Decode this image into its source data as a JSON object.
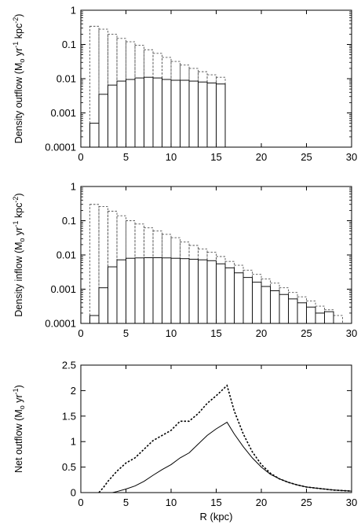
{
  "chart_data": [
    {
      "type": "bar",
      "yscale": "log",
      "ylim": [
        0.0001,
        1
      ],
      "xlim": [
        0,
        30
      ],
      "xticks": [
        0,
        5,
        10,
        15,
        20,
        25,
        30
      ],
      "yticks": [
        {
          "value": 0.0001,
          "label": "0.0001"
        },
        {
          "value": 0.001,
          "label": "0.001"
        },
        {
          "value": 0.01,
          "label": "0.01"
        },
        {
          "value": 0.1,
          "label": "0.1"
        },
        {
          "value": 1,
          "label": "1"
        }
      ],
      "ylabel": {
        "base": "Density outflow (M",
        "sub": "o",
        "mid1": " yr",
        "sup1": "-1",
        "mid2": " kpc",
        "sup2": "-2",
        "end": ")"
      },
      "xlabel": "",
      "bin_edges": [
        1,
        2,
        3,
        4,
        5,
        6,
        7,
        8,
        9,
        10,
        11,
        12,
        13,
        14,
        15,
        16
      ],
      "series": [
        {
          "style": "dashed",
          "values": [
            0.34,
            0.28,
            0.2,
            0.15,
            0.12,
            0.095,
            0.07,
            0.055,
            0.042,
            0.032,
            0.025,
            0.02,
            0.016,
            0.013,
            0.011
          ]
        },
        {
          "style": "solid",
          "values": [
            0.0005,
            0.0035,
            0.0065,
            0.0085,
            0.0095,
            0.0105,
            0.011,
            0.0105,
            0.0095,
            0.009,
            0.009,
            0.0085,
            0.008,
            0.0075,
            0.007
          ]
        }
      ]
    },
    {
      "type": "bar",
      "yscale": "log",
      "ylim": [
        0.0001,
        1
      ],
      "xlim": [
        0,
        30
      ],
      "xticks": [
        0,
        5,
        10,
        15,
        20,
        25,
        30
      ],
      "yticks": [
        {
          "value": 0.0001,
          "label": "0.0001"
        },
        {
          "value": 0.001,
          "label": "0.001"
        },
        {
          "value": 0.01,
          "label": "0.01"
        },
        {
          "value": 0.1,
          "label": "0.1"
        },
        {
          "value": 1,
          "label": "1"
        }
      ],
      "ylabel": {
        "base": "Density inflow (M",
        "sub": "o",
        "mid1": " yr",
        "sup1": "-1",
        "mid2": " kpc",
        "sup2": "-2",
        "end": ")"
      },
      "xlabel": "",
      "bin_edges": [
        1,
        2,
        3,
        4,
        5,
        6,
        7,
        8,
        9,
        10,
        11,
        12,
        13,
        14,
        15,
        16,
        17,
        18,
        19,
        20,
        21,
        22,
        23,
        24,
        25,
        26,
        27,
        28,
        29
      ],
      "series": [
        {
          "style": "dashed",
          "values": [
            0.3,
            0.26,
            0.19,
            0.14,
            0.1,
            0.08,
            0.062,
            0.05,
            0.04,
            0.032,
            0.024,
            0.019,
            0.015,
            0.012,
            0.009,
            0.0065,
            0.005,
            0.0036,
            0.0027,
            0.002,
            0.0015,
            0.0011,
            0.0008,
            0.0006,
            0.00045,
            0.00032,
            0.00025,
            0.00017
          ]
        },
        {
          "style": "solid",
          "values": [
            0.00017,
            0.0011,
            0.0045,
            0.0072,
            0.008,
            0.0082,
            0.0083,
            0.0083,
            0.0082,
            0.008,
            0.0078,
            0.0075,
            0.0072,
            0.0068,
            0.0055,
            0.0042,
            0.003,
            0.0022,
            0.0016,
            0.0012,
            0.0009,
            0.0007,
            0.00052,
            0.0004,
            0.0003,
            0.0002,
            0.00022,
            0.0001
          ]
        }
      ]
    },
    {
      "type": "line",
      "ylim": [
        0,
        2.5
      ],
      "xlim": [
        0,
        30
      ],
      "xticks": [
        0,
        5,
        10,
        15,
        20,
        25,
        30
      ],
      "yticks": [
        {
          "value": 0,
          "label": "0"
        },
        {
          "value": 0.5,
          "label": "0.5"
        },
        {
          "value": 1,
          "label": "1"
        },
        {
          "value": 1.5,
          "label": "1.5"
        },
        {
          "value": 2,
          "label": "2"
        },
        {
          "value": 2.5,
          "label": "2.5"
        }
      ],
      "ylabel": {
        "base": "Net outflow (M",
        "sub": "o",
        "mid1": " yr",
        "sup1": "-1",
        "end": ")"
      },
      "xlabel": "R (kpc)",
      "series": [
        {
          "style": "dashed",
          "x": [
            2,
            2.5,
            3,
            4,
            5,
            6,
            7,
            8,
            9,
            10,
            11,
            12,
            13,
            14,
            15,
            16.2,
            17,
            18,
            19,
            20,
            21,
            22,
            23,
            24,
            25,
            26,
            27,
            28,
            29,
            30
          ],
          "y": [
            0,
            0.1,
            0.22,
            0.42,
            0.58,
            0.68,
            0.85,
            1.02,
            1.12,
            1.22,
            1.4,
            1.4,
            1.55,
            1.75,
            1.9,
            2.1,
            1.6,
            1.15,
            0.8,
            0.55,
            0.38,
            0.27,
            0.2,
            0.15,
            0.11,
            0.09,
            0.07,
            0.05,
            0.04,
            0.03
          ]
        },
        {
          "style": "solid",
          "x": [
            3.5,
            4,
            5,
            6,
            7,
            8,
            9,
            10,
            11,
            12,
            13,
            14,
            15,
            16.2,
            17,
            18,
            19,
            20,
            21,
            22,
            23,
            24,
            25,
            26,
            27,
            28,
            29,
            30
          ],
          "y": [
            0,
            0.02,
            0.07,
            0.13,
            0.22,
            0.34,
            0.45,
            0.55,
            0.68,
            0.78,
            0.95,
            1.12,
            1.25,
            1.38,
            1.15,
            0.9,
            0.68,
            0.5,
            0.36,
            0.27,
            0.2,
            0.15,
            0.11,
            0.09,
            0.07,
            0.05,
            0.04,
            0.03
          ]
        }
      ]
    }
  ]
}
